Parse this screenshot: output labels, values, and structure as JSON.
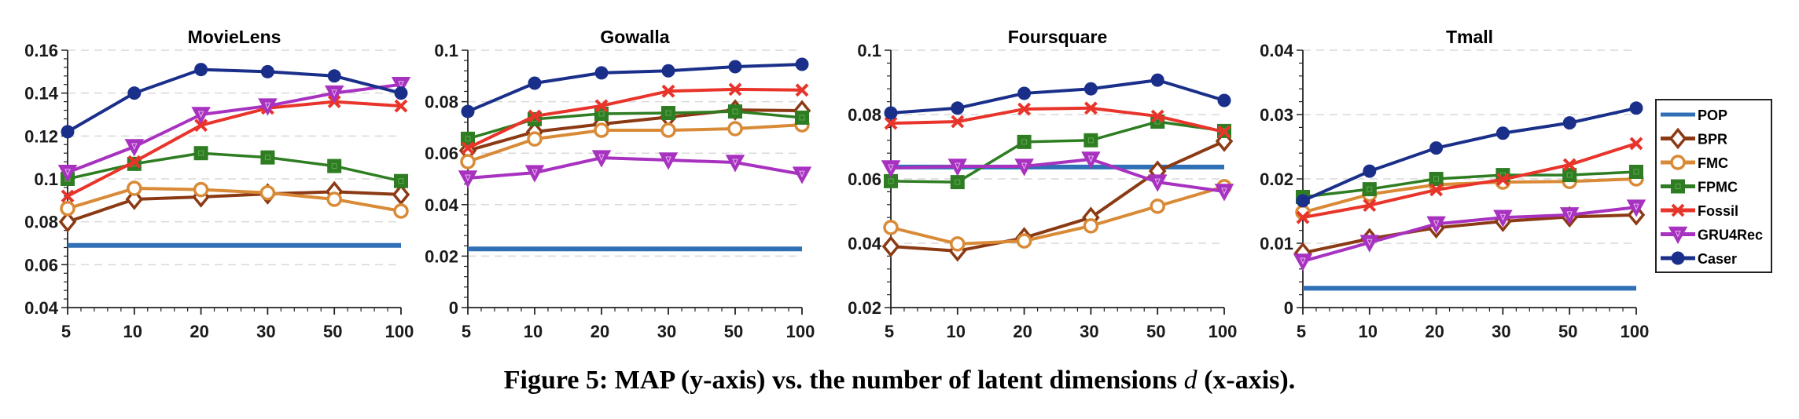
{
  "chart_data": [
    {
      "type": "line",
      "title": "MovieLens",
      "xlabel": "",
      "ylabel": "",
      "categories": [
        "5",
        "10",
        "20",
        "30",
        "50",
        "100"
      ],
      "ylim": [
        0.04,
        0.16
      ],
      "yticks": [
        "0.04",
        "0.06",
        "0.08",
        "0.1",
        "0.12",
        "0.14",
        "0.16"
      ],
      "grid": "horizontal-dashed",
      "series": [
        {
          "name": "POP",
          "values": [
            0.069,
            0.069,
            0.069,
            0.069,
            0.069,
            0.069
          ]
        },
        {
          "name": "BPR",
          "values": [
            0.08,
            0.0905,
            0.0916,
            0.093,
            0.094,
            0.0927
          ]
        },
        {
          "name": "FMC",
          "values": [
            0.0862,
            0.0956,
            0.095,
            0.0935,
            0.0905,
            0.085
          ]
        },
        {
          "name": "FPMC",
          "values": [
            0.1,
            0.107,
            0.112,
            0.11,
            0.106,
            0.099
          ]
        },
        {
          "name": "Fossil",
          "values": [
            0.092,
            0.108,
            0.125,
            0.133,
            0.136,
            0.134
          ]
        },
        {
          "name": "GRU4Rec",
          "values": [
            0.103,
            0.115,
            0.13,
            0.134,
            0.14,
            0.144
          ]
        },
        {
          "name": "Caser",
          "values": [
            0.122,
            0.14,
            0.151,
            0.15,
            0.148,
            0.14
          ]
        }
      ]
    },
    {
      "type": "line",
      "title": "Gowalla",
      "xlabel": "",
      "ylabel": "",
      "categories": [
        "5",
        "10",
        "20",
        "30",
        "50",
        "100"
      ],
      "ylim": [
        0,
        0.1
      ],
      "yticks": [
        "0",
        "0.02",
        "0.04",
        "0.06",
        "0.08",
        "0.1"
      ],
      "grid": "horizontal-dashed",
      "series": [
        {
          "name": "POP",
          "values": [
            0.0228,
            0.0228,
            0.0228,
            0.0228,
            0.0228,
            0.0228
          ]
        },
        {
          "name": "BPR",
          "values": [
            0.061,
            0.0683,
            0.0713,
            0.074,
            0.0768,
            0.0765
          ]
        },
        {
          "name": "FMC",
          "values": [
            0.0567,
            0.0655,
            0.0689,
            0.0689,
            0.0695,
            0.071
          ]
        },
        {
          "name": "FPMC",
          "values": [
            0.0656,
            0.0732,
            0.0753,
            0.0756,
            0.0762,
            0.0738
          ]
        },
        {
          "name": "Fossil",
          "values": [
            0.062,
            0.0744,
            0.0784,
            0.0841,
            0.0848,
            0.0845
          ]
        },
        {
          "name": "GRU4Rec",
          "values": [
            0.0503,
            0.0524,
            0.0582,
            0.0573,
            0.0564,
            0.0518
          ]
        },
        {
          "name": "Caser",
          "values": [
            0.0762,
            0.0872,
            0.0912,
            0.092,
            0.0936,
            0.0945
          ]
        }
      ]
    },
    {
      "type": "line",
      "title": "Foursquare",
      "xlabel": "",
      "ylabel": "",
      "categories": [
        "5",
        "10",
        "20",
        "30",
        "50",
        "100"
      ],
      "ylim": [
        0.02,
        0.1
      ],
      "yticks": [
        "0.02",
        "0.04",
        "0.06",
        "0.08",
        "0.1"
      ],
      "grid": "horizontal-dashed",
      "series": [
        {
          "name": "POP",
          "values": [
            0.0637,
            0.0637,
            0.0637,
            0.0637,
            0.0637,
            0.0637
          ]
        },
        {
          "name": "BPR",
          "values": [
            0.039,
            0.0376,
            0.0417,
            0.048,
            0.0624,
            0.0717
          ]
        },
        {
          "name": "FMC",
          "values": [
            0.0449,
            0.0398,
            0.0407,
            0.0454,
            0.0515,
            0.0576
          ]
        },
        {
          "name": "FPMC",
          "values": [
            0.0593,
            0.059,
            0.0715,
            0.072,
            0.0778,
            0.0749
          ]
        },
        {
          "name": "Fossil",
          "values": [
            0.0773,
            0.0778,
            0.0817,
            0.082,
            0.0795,
            0.0746
          ]
        },
        {
          "name": "GRU4Rec",
          "values": [
            0.0634,
            0.0639,
            0.0639,
            0.0661,
            0.059,
            0.0561
          ]
        },
        {
          "name": "Caser",
          "values": [
            0.0805,
            0.082,
            0.0866,
            0.088,
            0.0907,
            0.0844
          ]
        }
      ]
    },
    {
      "type": "line",
      "title": "Tmall",
      "xlabel": "",
      "ylabel": "",
      "categories": [
        "5",
        "10",
        "20",
        "30",
        "50",
        "100"
      ],
      "ylim": [
        0,
        0.04
      ],
      "yticks": [
        "0",
        "0.01",
        "0.02",
        "0.03",
        "0.04"
      ],
      "grid": "horizontal-dashed",
      "series": [
        {
          "name": "POP",
          "values": [
            0.003,
            0.003,
            0.003,
            0.003,
            0.003,
            0.003
          ]
        },
        {
          "name": "BPR",
          "values": [
            0.0085,
            0.0107,
            0.0124,
            0.0134,
            0.0141,
            0.0144
          ]
        },
        {
          "name": "FMC",
          "values": [
            0.0148,
            0.0176,
            0.0191,
            0.0195,
            0.0196,
            0.02
          ]
        },
        {
          "name": "FPMC",
          "values": [
            0.0172,
            0.0184,
            0.02,
            0.0206,
            0.0206,
            0.0211
          ]
        },
        {
          "name": "Fossil",
          "values": [
            0.014,
            0.0159,
            0.0183,
            0.0199,
            0.0222,
            0.0255
          ]
        },
        {
          "name": "GRU4Rec",
          "values": [
            0.0072,
            0.0101,
            0.013,
            0.014,
            0.0144,
            0.0156
          ]
        },
        {
          "name": "Caser",
          "values": [
            0.0166,
            0.0212,
            0.0248,
            0.0271,
            0.0287,
            0.031
          ]
        }
      ]
    }
  ],
  "legend": {
    "placement": "right",
    "entries": [
      {
        "name": "POP",
        "color": "#2f6fb5",
        "marker": "none"
      },
      {
        "name": "BPR",
        "color": "#8b3a14",
        "marker": "diamond-open"
      },
      {
        "name": "FMC",
        "color": "#d98a36",
        "marker": "circle-open"
      },
      {
        "name": "FPMC",
        "color": "#2e7d22",
        "marker": "square"
      },
      {
        "name": "Fossil",
        "color": "#e8342a",
        "marker": "x"
      },
      {
        "name": "GRU4Rec",
        "color": "#a832c0",
        "marker": "triangle-down"
      },
      {
        "name": "Caser",
        "color": "#1a2f8a",
        "marker": "circle-filled"
      }
    ]
  },
  "caption": {
    "prefix": "Figure 5: MAP (y-axis) vs. the number of latent dimensions ",
    "variable": "d",
    "suffix": " (x-axis)."
  }
}
